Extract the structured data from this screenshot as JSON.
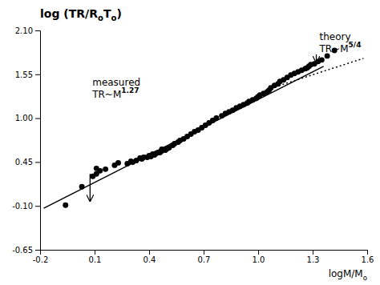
{
  "chart_data": {
    "type": "scatter",
    "title": [
      "log (TR/R",
      "o",
      "T",
      "o",
      ")"
    ],
    "x_label": [
      "logM/M",
      "o"
    ],
    "xlim": [
      -0.2,
      1.6
    ],
    "ylim": [
      -0.65,
      2.1
    ],
    "xticks": [
      -0.2,
      0.1,
      0.4,
      0.7,
      {
        "value": 1.0,
        "label": "1.0"
      },
      1.3,
      1.6
    ],
    "yticks": [
      -0.65,
      {
        "value": -0.1,
        "label": "-0.10"
      },
      0.45,
      {
        "value": 1.0,
        "label": "1.00"
      },
      1.55,
      {
        "value": 2.1,
        "label": "2.10"
      }
    ],
    "grid": false,
    "series": [
      {
        "type": "scatter",
        "marker": "circle",
        "color": "#000000",
        "x": [
          -0.06,
          0.03,
          0.09,
          0.11,
          0.13,
          0.11,
          0.16,
          0.21,
          0.23,
          0.28,
          0.3,
          0.31,
          0.33,
          0.35,
          0.36,
          0.37,
          0.39,
          0.4,
          0.41,
          0.42,
          0.43,
          0.44,
          0.45,
          0.46,
          0.47,
          0.47,
          0.49,
          0.5,
          0.51,
          0.53,
          0.54,
          0.56,
          0.57,
          0.59,
          0.61,
          0.63,
          0.65,
          0.67,
          0.69,
          0.71,
          0.73,
          0.75,
          0.77,
          0.8,
          0.82,
          0.84,
          0.86,
          0.88,
          0.9,
          0.92,
          0.94,
          0.95,
          0.97,
          0.99,
          1.0,
          1.01,
          1.03,
          1.05,
          1.06,
          1.07,
          1.09,
          1.11,
          1.12,
          1.14,
          1.16,
          1.18,
          1.2,
          1.22,
          1.24,
          1.26,
          1.27,
          1.28,
          1.29,
          1.31,
          1.33,
          1.35,
          1.38,
          1.42
        ],
        "values": [
          -0.09,
          0.14,
          0.27,
          0.3,
          0.34,
          0.37,
          0.36,
          0.41,
          0.44,
          0.43,
          0.46,
          0.45,
          0.47,
          0.5,
          0.49,
          0.51,
          0.51,
          0.53,
          0.52,
          0.55,
          0.54,
          0.56,
          0.57,
          0.57,
          0.59,
          0.61,
          0.6,
          0.62,
          0.63,
          0.66,
          0.68,
          0.7,
          0.72,
          0.74,
          0.77,
          0.8,
          0.83,
          0.85,
          0.88,
          0.91,
          0.94,
          0.97,
          1.0,
          1.03,
          1.06,
          1.08,
          1.1,
          1.13,
          1.15,
          1.17,
          1.19,
          1.21,
          1.23,
          1.25,
          1.27,
          1.29,
          1.31,
          1.33,
          1.35,
          1.38,
          1.41,
          1.43,
          1.46,
          1.48,
          1.51,
          1.54,
          1.56,
          1.58,
          1.6,
          1.62,
          1.63,
          1.65,
          1.67,
          1.68,
          1.71,
          1.73,
          1.78,
          1.85
        ]
      },
      {
        "type": "line",
        "line_style": "solid",
        "color": "#000000",
        "x": [
          -0.18,
          1.36
        ],
        "values": [
          -0.13,
          1.65
        ]
      },
      {
        "type": "line",
        "line_style": "dotted",
        "color": "#000000",
        "x": [
          1.05,
          1.58
        ],
        "values": [
          1.36,
          1.75
        ]
      }
    ],
    "annotations": [
      {
        "text": "measured",
        "formula": "TR~M",
        "exponent": "1.27",
        "x": 0.07,
        "y": 1.38,
        "arrow_x": 0.075,
        "arrow_from": 0.3,
        "arrow_to": -0.04
      },
      {
        "text": "theory",
        "formula": "TR~M",
        "exponent": "5/4",
        "x": 1.32,
        "y": 1.95,
        "arrow_x": 1.32,
        "arrow_from": 1.8,
        "arrow_to": 1.7
      }
    ]
  }
}
